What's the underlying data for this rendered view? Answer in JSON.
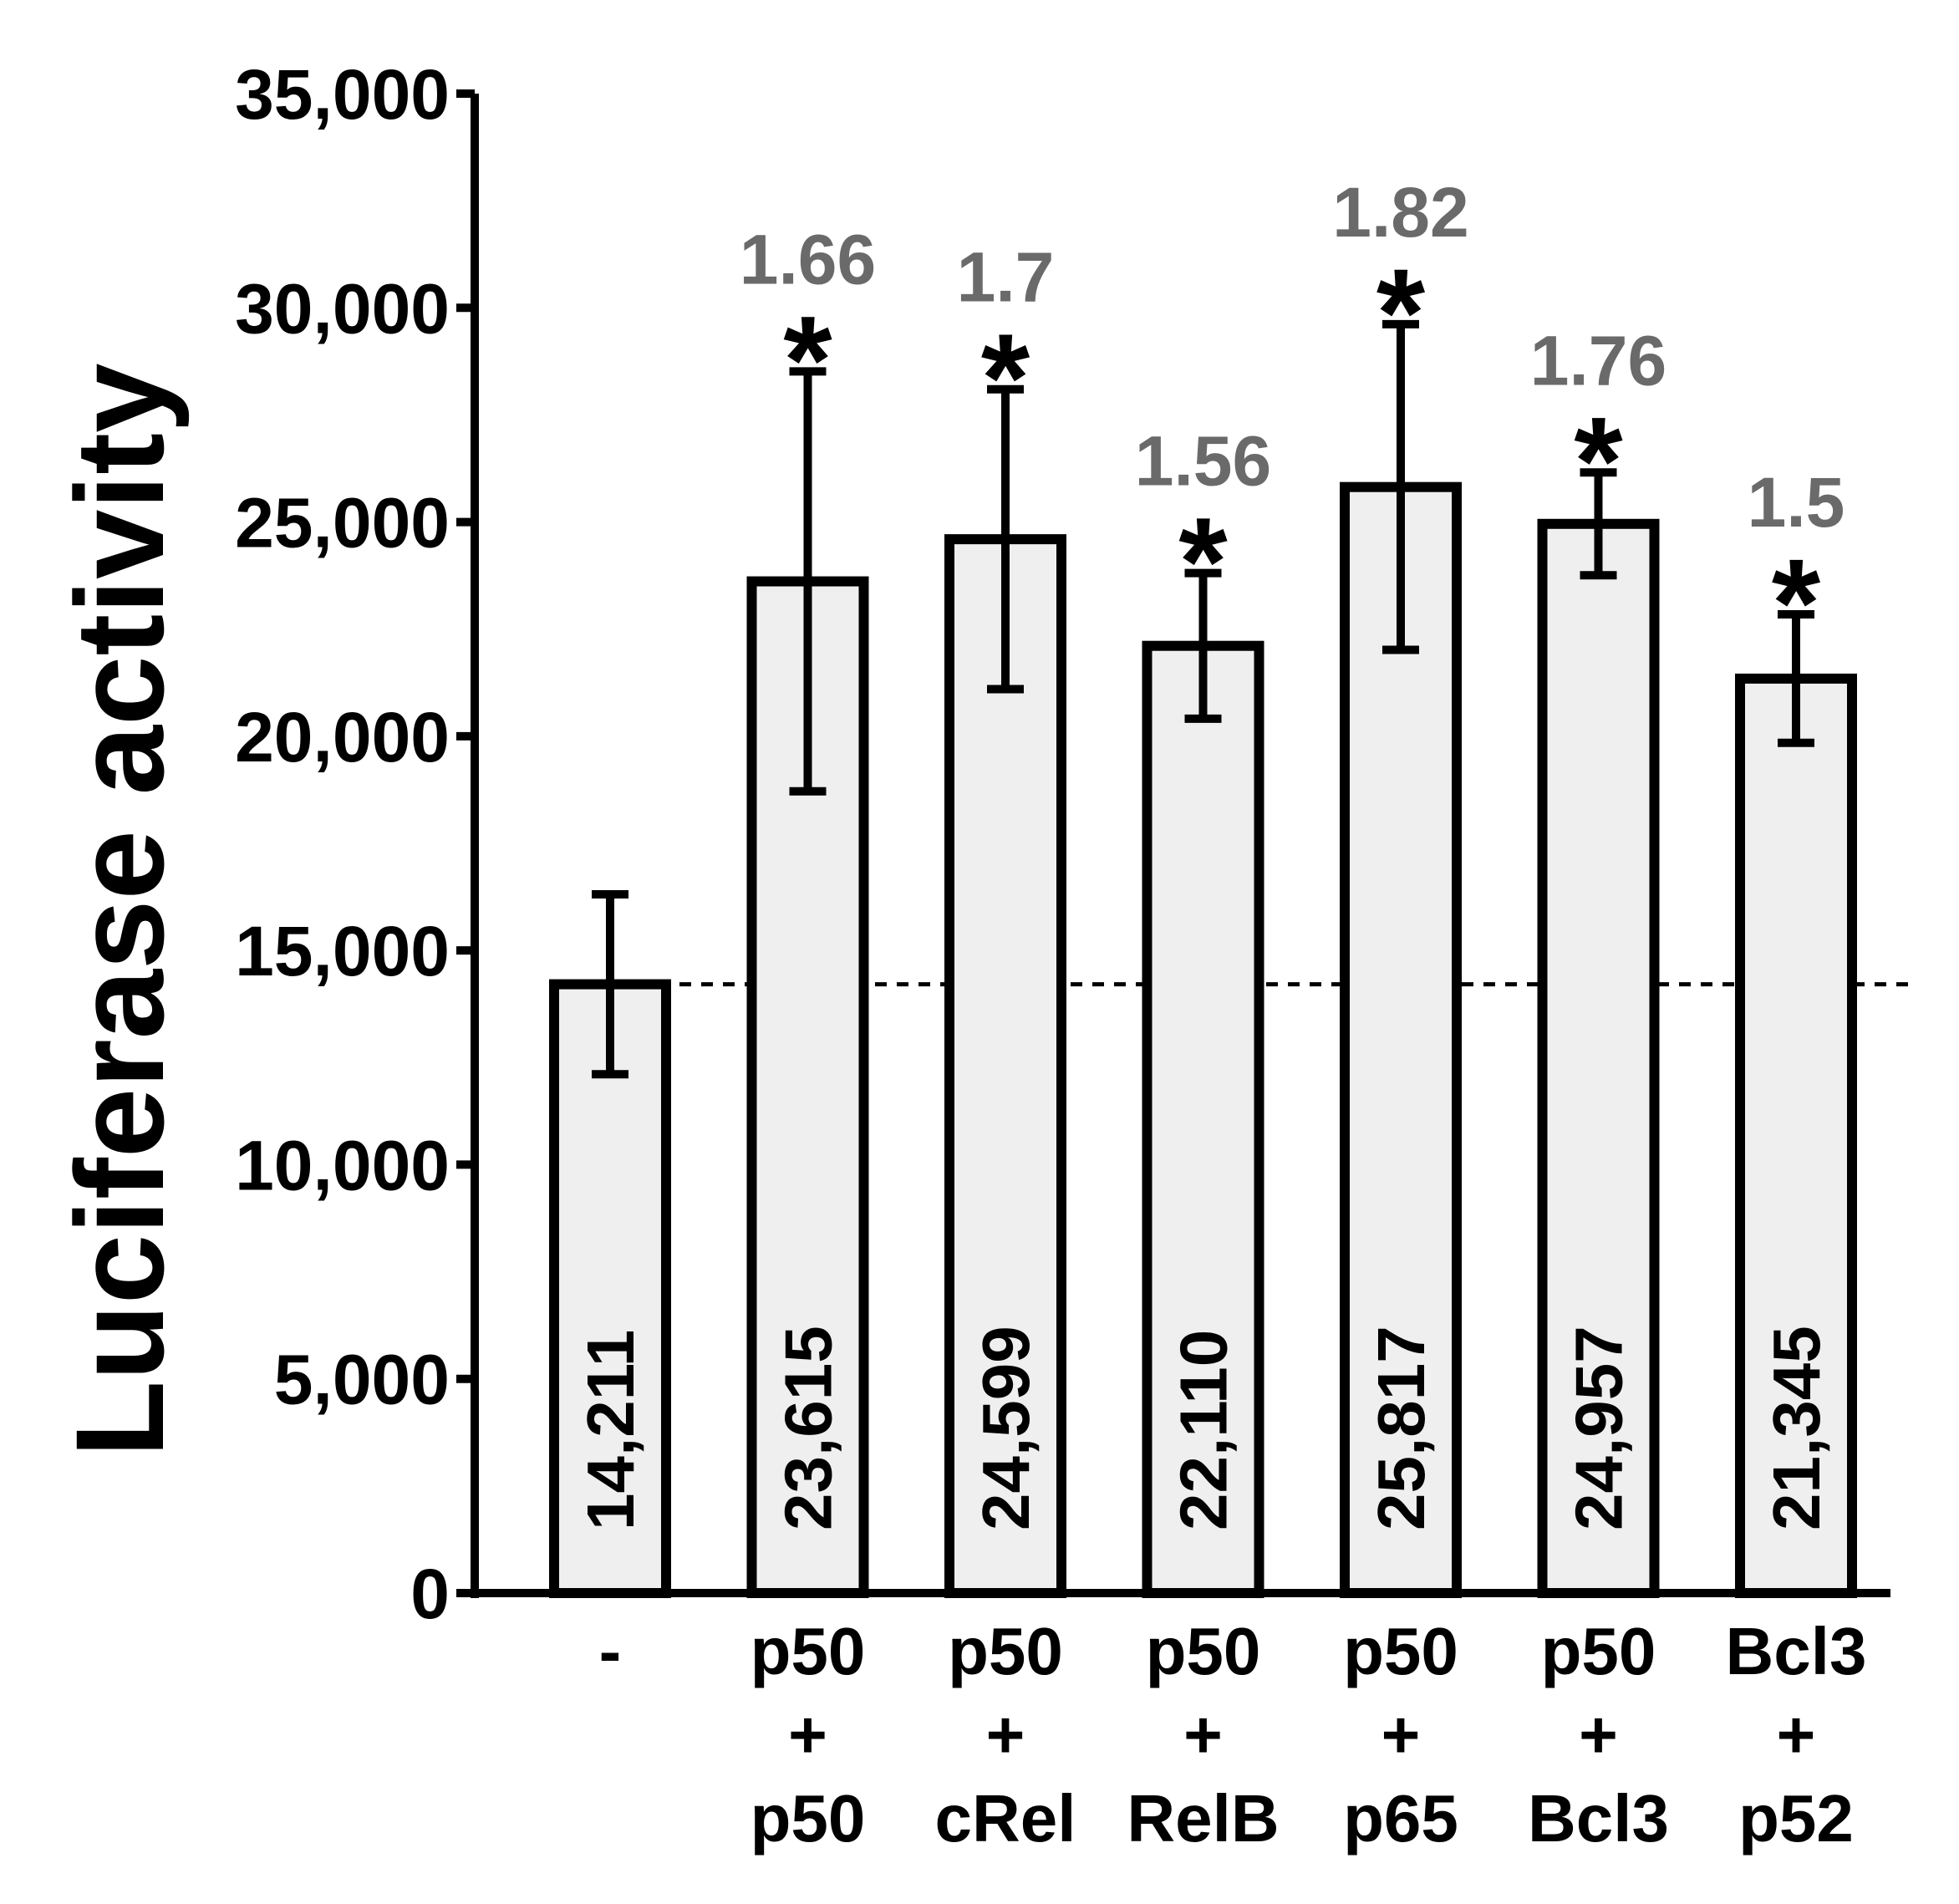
{
  "chart_data": {
    "type": "bar",
    "ylabel": "Luciferase activity",
    "xlabel": "",
    "ylim": [
      0,
      35000
    ],
    "yticks": [
      0,
      5000,
      10000,
      15000,
      20000,
      25000,
      30000,
      35000
    ],
    "ytick_labels": [
      "0",
      "5,000",
      "10,000",
      "15,000",
      "20,000",
      "25,000",
      "30,000",
      "35,000"
    ],
    "grid": false,
    "reference_line": 14211,
    "categories": [
      [
        "-"
      ],
      [
        "p50",
        "+",
        "p50"
      ],
      [
        "p50",
        "+",
        "cRel"
      ],
      [
        "p50",
        "+",
        "RelB"
      ],
      [
        "p50",
        "+",
        "p65"
      ],
      [
        "p50",
        "+",
        "Bcl3"
      ],
      [
        "Bcl3",
        "+",
        "p52"
      ]
    ],
    "values": [
      14211,
      23615,
      24599,
      22110,
      25817,
      24957,
      21345
    ],
    "value_labels": [
      "14,211",
      "23,615",
      "24,599",
      "22,110",
      "25,817",
      "24,957",
      "21,345"
    ],
    "error": [
      2100,
      4900,
      3500,
      1700,
      3800,
      1200,
      1500
    ],
    "significance": [
      "",
      "*",
      "*",
      "*",
      "*",
      "*",
      "*"
    ],
    "fold_change": [
      "",
      "1.66",
      "1.7",
      "1.56",
      "1.82",
      "1.76",
      "1.5"
    ],
    "colors": {
      "bar_fill": "#efefef",
      "bar_stroke": "#000000",
      "fold_text": "#6a6a6a"
    }
  }
}
